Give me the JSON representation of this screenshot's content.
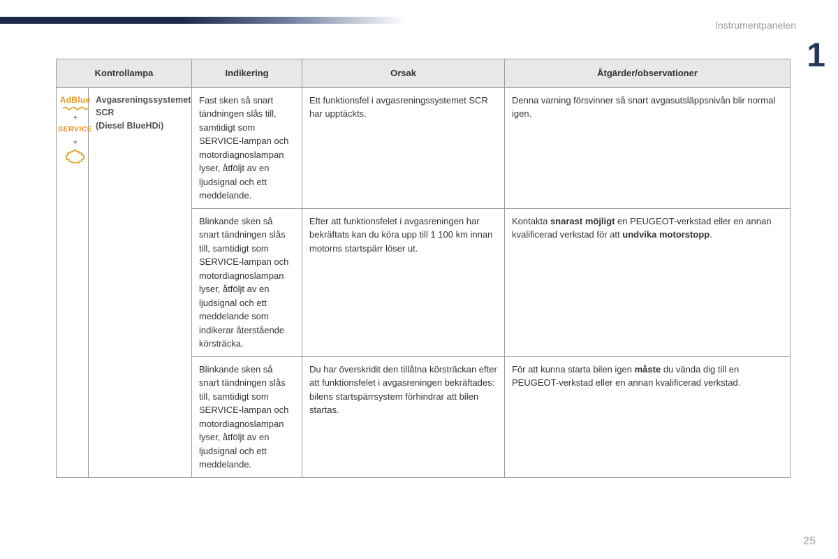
{
  "header": {
    "section_title": "Instrumentpanelen",
    "chapter_number": "1",
    "page_number": "25"
  },
  "table": {
    "columns": {
      "kontrollampa": "Kontrollampa",
      "indikering": "Indikering",
      "orsak": "Orsak",
      "atgarder": "Åtgärder/observationer"
    },
    "lamp": {
      "name_line1": "Avgasreningssystemet",
      "name_line2": "SCR",
      "name_line3": "(Diesel BlueHDi)",
      "icon_labels": {
        "adblue": "AdBlue",
        "service": "SERVICE",
        "plus": "+"
      }
    },
    "rows": [
      {
        "indikering": "Fast sken så snart tändningen slås till, samtidigt som SERVICE-lampan och motordiagnoslampan lyser, åtföljt av en ljudsignal och ett meddelande.",
        "orsak": "Ett funktionsfel i avgasreningssystemet SCR har upptäckts.",
        "atgarder_html": "Denna varning försvinner så snart avgasutsläppsnivån blir normal igen."
      },
      {
        "indikering": "Blinkande sken så snart tändningen slås till, samtidigt som SERVICE-lampan och motordiagnoslampan lyser, åtföljt av en ljudsignal och ett meddelande som indikerar återstående körsträcka.",
        "orsak": "Efter att funktionsfelet i avgasreningen har bekräftats kan du köra upp till 1 100 km innan motorns startspärr löser ut.",
        "atgarder_html": "Kontakta <b>snarast möjligt</b> en PEUGEOT-verkstad eller en annan kvalificerad verkstad för att <b>undvika motorstopp</b>."
      },
      {
        "indikering": "Blinkande sken så snart tändningen slås till, samtidigt som SERVICE-lampan och motordiagnoslampan lyser, åtföljt av en ljudsignal och ett meddelande.",
        "orsak": "Du har överskridit den tillåtna körsträckan efter att funktionsfelet i avgasreningen bekräftades: bilens startspärrsystem förhindrar att bilen startas.",
        "atgarder_html": "För att kunna starta bilen igen <b>måste</b> du vända dig till en PEUGEOT-verkstad eller en annan kvalificerad verkstad."
      }
    ]
  },
  "colors": {
    "accent_dark": "#26385f",
    "icon_orange": "#e6991f",
    "border": "#9a9a9a",
    "header_bg": "#e8e8e8"
  }
}
